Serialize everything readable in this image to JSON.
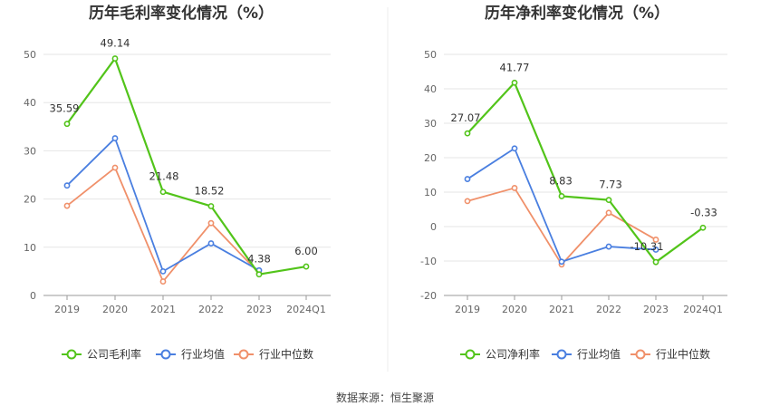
{
  "chart_data": [
    {
      "type": "line",
      "title": "历年毛利率变化情况（%）",
      "categories": [
        "2019",
        "2020",
        "2021",
        "2022",
        "2023",
        "2024Q1"
      ],
      "ylim": [
        0,
        50
      ],
      "yticks": [
        "0",
        "10",
        "20",
        "30",
        "40",
        "50"
      ],
      "grid": true,
      "legend_position": "bottom",
      "series": [
        {
          "name": "公司毛利率",
          "color": "#52c41a",
          "values": [
            35.59,
            49.14,
            21.48,
            18.52,
            4.38,
            6.0
          ],
          "labels": [
            "35.59",
            "49.14",
            "21.48",
            "18.52",
            "4.38",
            "6.00"
          ]
        },
        {
          "name": "行业均值",
          "color": "#4a7fe0",
          "values": [
            22.8,
            32.6,
            5.0,
            10.8,
            5.2,
            null
          ]
        },
        {
          "name": "行业中位数",
          "color": "#f0906a",
          "values": [
            18.6,
            26.5,
            2.9,
            15.0,
            4.6,
            null
          ]
        }
      ]
    },
    {
      "type": "line",
      "title": "历年净利率变化情况（%）",
      "categories": [
        "2019",
        "2020",
        "2021",
        "2022",
        "2023",
        "2024Q1"
      ],
      "ylim": [
        -20,
        50
      ],
      "yticks": [
        "-20",
        "-10",
        "0",
        "10",
        "20",
        "30",
        "40",
        "50"
      ],
      "grid": true,
      "legend_position": "bottom",
      "series": [
        {
          "name": "公司净利率",
          "color": "#52c41a",
          "values": [
            27.07,
            41.77,
            8.83,
            7.73,
            -10.31,
            -0.33
          ],
          "labels": [
            "27.07",
            "41.77",
            "8.83",
            "7.73",
            "-10.31",
            "-0.33"
          ]
        },
        {
          "name": "行业均值",
          "color": "#4a7fe0",
          "values": [
            13.8,
            22.7,
            -10.2,
            -5.8,
            -6.7,
            null
          ]
        },
        {
          "name": "行业中位数",
          "color": "#f0906a",
          "values": [
            7.4,
            11.2,
            -11.0,
            4.0,
            -3.8,
            null
          ]
        }
      ]
    }
  ],
  "source": "数据来源：恒生聚源"
}
